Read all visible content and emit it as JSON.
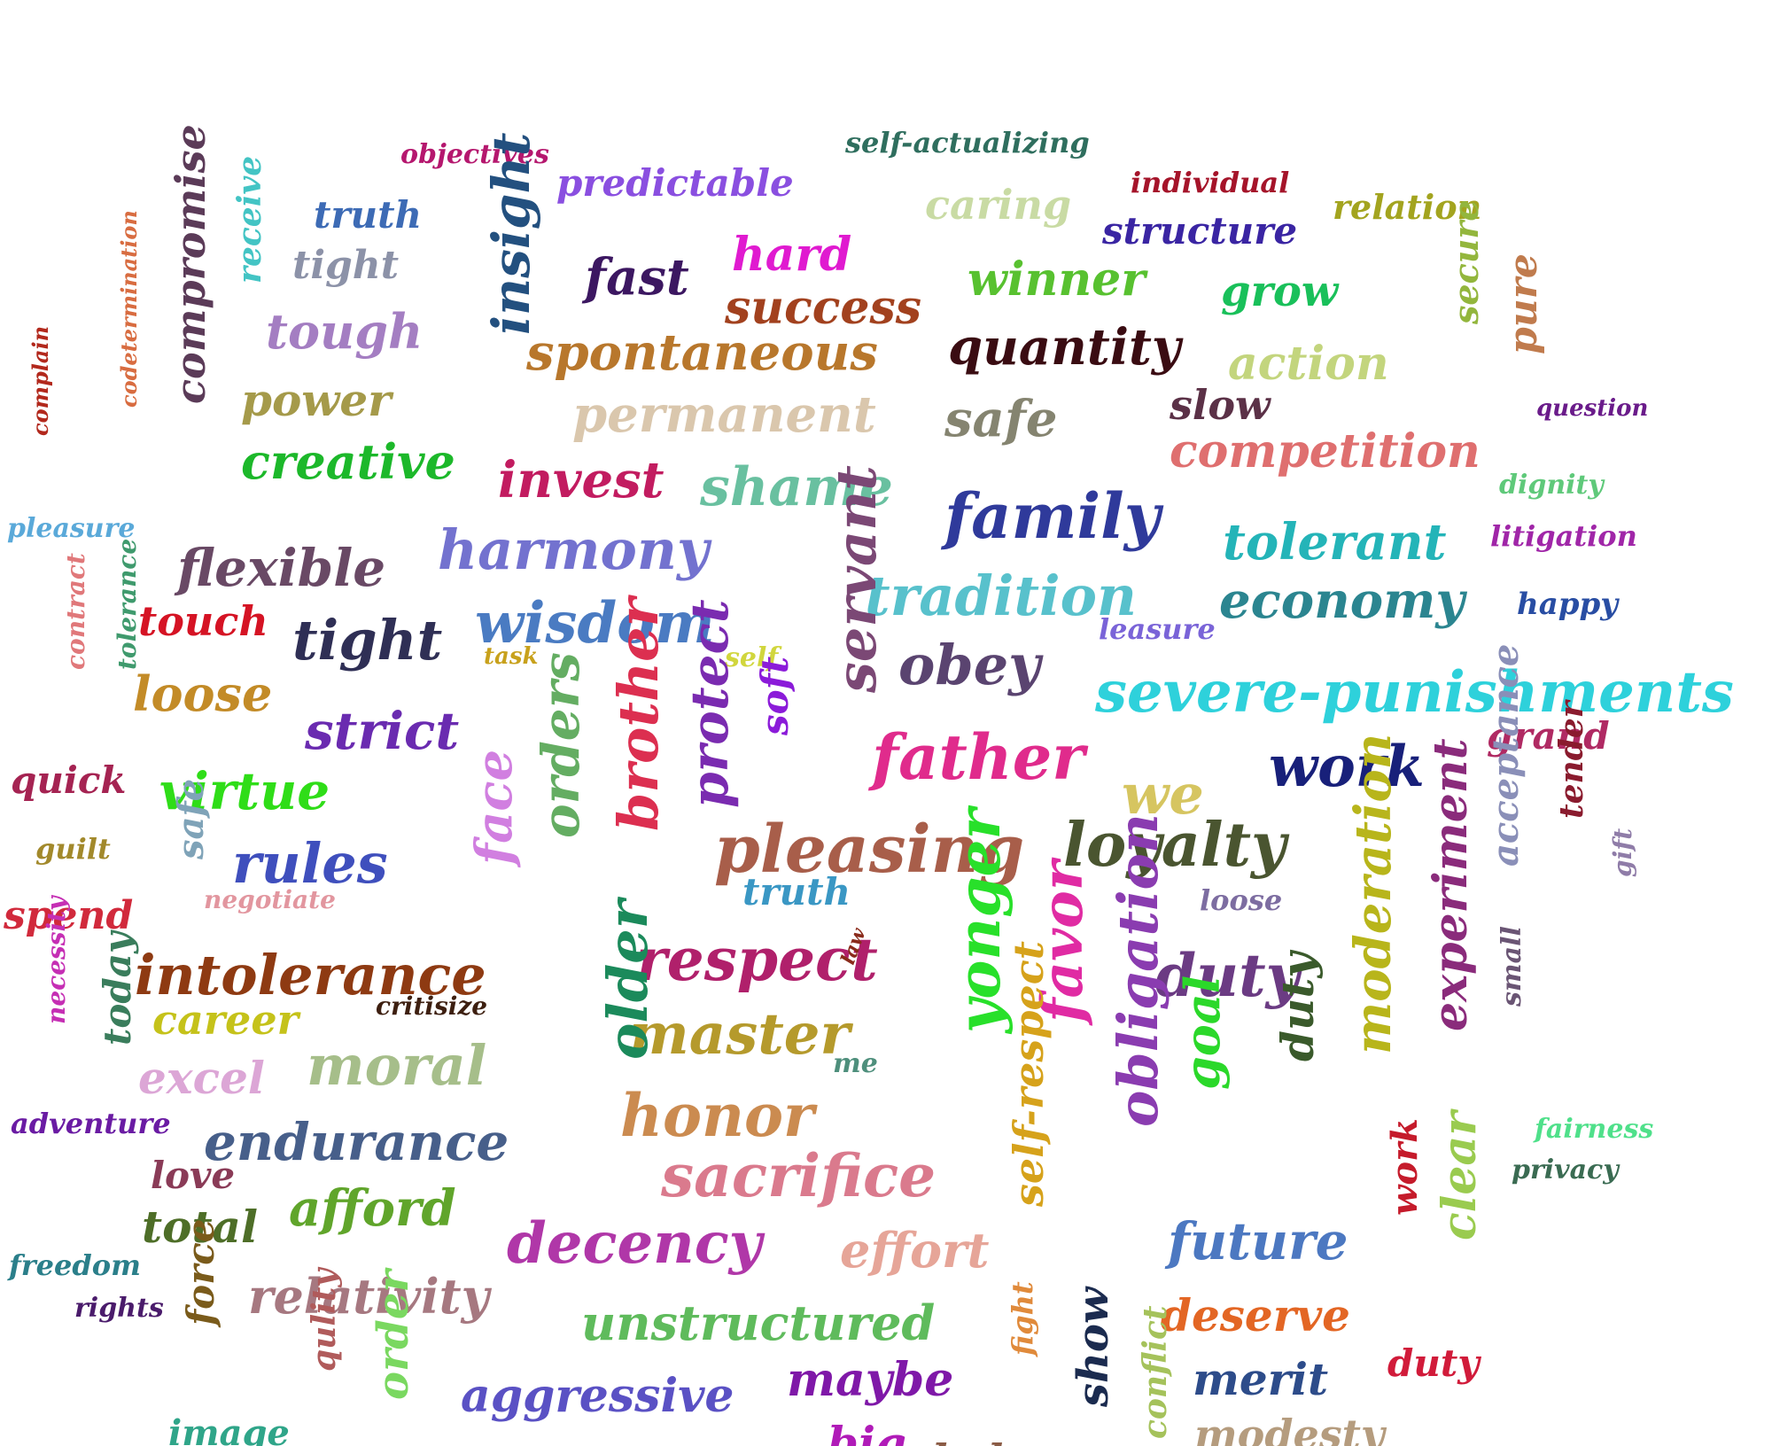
{
  "words": [
    {
      "text": "objectives",
      "color": "#b5176e"
    },
    {
      "text": "self-actualizing",
      "color": "#2f6e5e"
    },
    {
      "text": "predictable",
      "color": "#8a4fe0"
    },
    {
      "text": "caring",
      "color": "#c9dba4"
    },
    {
      "text": "individual",
      "color": "#a5142a"
    },
    {
      "text": "relation",
      "color": "#a3a41f"
    },
    {
      "text": "truth",
      "color": "#3d6bb5"
    },
    {
      "text": "structure",
      "color": "#3a25a3"
    },
    {
      "text": "tight",
      "color": "#8c92a8"
    },
    {
      "text": "hard",
      "color": "#e01ad0"
    },
    {
      "text": "fast",
      "color": "#3c1761"
    },
    {
      "text": "winner",
      "color": "#58c130"
    },
    {
      "text": "grow",
      "color": "#19c05a"
    },
    {
      "text": "success",
      "color": "#a2411e"
    },
    {
      "text": "tough",
      "color": "#a47ec2"
    },
    {
      "text": "spontaneous",
      "color": "#b8772c"
    },
    {
      "text": "quantity",
      "color": "#3a0c12"
    },
    {
      "text": "action",
      "color": "#c3d57d"
    },
    {
      "text": "power",
      "color": "#a59a4a"
    },
    {
      "text": "permanent",
      "color": "#dac7ad"
    },
    {
      "text": "safe",
      "color": "#858470"
    },
    {
      "text": "slow",
      "color": "#5b3147"
    },
    {
      "text": "creative",
      "color": "#1cb82a"
    },
    {
      "text": "competition",
      "color": "#df6f6f"
    },
    {
      "text": "question",
      "color": "#6a1b8a"
    },
    {
      "text": "invest",
      "color": "#c21c60"
    },
    {
      "text": "shame",
      "color": "#69c0a0"
    },
    {
      "text": "family",
      "color": "#2f3a9b"
    },
    {
      "text": "dignity",
      "color": "#5fc97a"
    },
    {
      "text": "pleasure",
      "color": "#5aa9d9"
    },
    {
      "text": "flexible",
      "color": "#694965"
    },
    {
      "text": "harmony",
      "color": "#7372cf"
    },
    {
      "text": "tolerant",
      "color": "#24b4b8"
    },
    {
      "text": "litigation",
      "color": "#a026a8"
    },
    {
      "text": "tradition",
      "color": "#58c1cc"
    },
    {
      "text": "economy",
      "color": "#2b8590"
    },
    {
      "text": "touch",
      "color": "#d51324"
    },
    {
      "text": "tight",
      "color": "#2f2f55"
    },
    {
      "text": "wisdom",
      "color": "#4a7bc2"
    },
    {
      "text": "happy",
      "color": "#284da3"
    },
    {
      "text": "obey",
      "color": "#5a4470"
    },
    {
      "text": "leasure",
      "color": "#7a64d8"
    },
    {
      "text": "task",
      "color": "#c8a11c"
    },
    {
      "text": "self",
      "color": "#d1d63d"
    },
    {
      "text": "loose",
      "color": "#c38b27"
    },
    {
      "text": "severe-punishments",
      "color": "#2ed1db"
    },
    {
      "text": "strict",
      "color": "#6a2bb0"
    },
    {
      "text": "father",
      "color": "#e02b8c"
    },
    {
      "text": "work",
      "color": "#18207a"
    },
    {
      "text": "grand",
      "color": "#b02a63"
    },
    {
      "text": "quick",
      "color": "#a52352"
    },
    {
      "text": "virtue",
      "color": "#2fdd18"
    },
    {
      "text": "we",
      "color": "#d6c560"
    },
    {
      "text": "pleasing",
      "color": "#a85e4a"
    },
    {
      "text": "loyalty",
      "color": "#4a5530"
    },
    {
      "text": "rules",
      "color": "#3f4fbd"
    },
    {
      "text": "guilt",
      "color": "#a2892b"
    },
    {
      "text": "truth",
      "color": "#3a97c4"
    },
    {
      "text": "negotiate",
      "color": "#e2969f"
    },
    {
      "text": "loose",
      "color": "#7d6da1"
    },
    {
      "text": "spend",
      "color": "#d12a3c"
    },
    {
      "text": "respect",
      "color": "#b0206b"
    },
    {
      "text": "intolerance",
      "color": "#8e3a12"
    },
    {
      "text": "duty",
      "color": "#6b3b83"
    },
    {
      "text": "career",
      "color": "#c5c21a"
    },
    {
      "text": "master",
      "color": "#b59a2c"
    },
    {
      "text": "critisize",
      "color": "#3d1f10"
    },
    {
      "text": "moral",
      "color": "#a6be8a"
    },
    {
      "text": "excel",
      "color": "#dca6d6"
    },
    {
      "text": "me",
      "color": "#4e8f7c"
    },
    {
      "text": "honor",
      "color": "#cb8b50"
    },
    {
      "text": "endurance",
      "color": "#475f8a"
    },
    {
      "text": "adventure",
      "color": "#6a1ba3"
    },
    {
      "text": "sacrifice",
      "color": "#da7a8d"
    },
    {
      "text": "fairness",
      "color": "#4fe08a"
    },
    {
      "text": "love",
      "color": "#8a3b57"
    },
    {
      "text": "privacy",
      "color": "#3a6b52"
    },
    {
      "text": "afford",
      "color": "#60a52b"
    },
    {
      "text": "total",
      "color": "#4e6e28"
    },
    {
      "text": "decency",
      "color": "#b037a8"
    },
    {
      "text": "effort",
      "color": "#e6a598"
    },
    {
      "text": "future",
      "color": "#4c78c1"
    },
    {
      "text": "freedom",
      "color": "#2b7f8a"
    },
    {
      "text": "relativity",
      "color": "#a67880"
    },
    {
      "text": "rights",
      "color": "#4a1b6b"
    },
    {
      "text": "unstructured",
      "color": "#5fbb5c"
    },
    {
      "text": "deserve",
      "color": "#e36624"
    },
    {
      "text": "aggressive",
      "color": "#5a51c4"
    },
    {
      "text": "maybe",
      "color": "#7f18a8"
    },
    {
      "text": "merit",
      "color": "#2d4c8a"
    },
    {
      "text": "duty",
      "color": "#d11b3a"
    },
    {
      "text": "image",
      "color": "#2fa589"
    },
    {
      "text": "big",
      "color": "#b01bb8"
    },
    {
      "text": "modesty",
      "color": "#b59c7e"
    },
    {
      "text": "solidarity",
      "color": "#2bb8a5"
    },
    {
      "text": "help",
      "color": "#8a5b45"
    },
    {
      "text": "tradition",
      "color": "#2b8a2b"
    },
    {
      "text": "complain",
      "color": "#b2281c"
    },
    {
      "text": "codetermination",
      "color": "#d86c40"
    },
    {
      "text": "compromise",
      "color": "#5b3b58"
    },
    {
      "text": "receive",
      "color": "#43c4c4"
    },
    {
      "text": "insight",
      "color": "#23507f"
    },
    {
      "text": "secure",
      "color": "#93b63d"
    },
    {
      "text": "pure",
      "color": "#c07b4d"
    },
    {
      "text": "contract",
      "color": "#e0787a"
    },
    {
      "text": "tolerance",
      "color": "#3f9a6d"
    },
    {
      "text": "servant",
      "color": "#7b4875"
    },
    {
      "text": "orders",
      "color": "#64ad62"
    },
    {
      "text": "brother",
      "color": "#dc2f50"
    },
    {
      "text": "protect",
      "color": "#7a2bb0"
    },
    {
      "text": "soft",
      "color": "#8b1bd9"
    },
    {
      "text": "safe",
      "color": "#7fa3b8"
    },
    {
      "text": "face",
      "color": "#d17fe0"
    },
    {
      "text": "necessity",
      "color": "#c52fb4"
    },
    {
      "text": "today",
      "color": "#3a7d5c"
    },
    {
      "text": "older",
      "color": "#1b8a5b"
    },
    {
      "text": "yonger",
      "color": "#28e02a"
    },
    {
      "text": "favor",
      "color": "#e02ba3"
    },
    {
      "text": "obligation",
      "color": "#8a3cb0"
    },
    {
      "text": "goal",
      "color": "#2bd82a"
    },
    {
      "text": "duty",
      "color": "#3a5a2b"
    },
    {
      "text": "moderation",
      "color": "#b8b51b"
    },
    {
      "text": "experiment",
      "color": "#8a2b7b"
    },
    {
      "text": "small",
      "color": "#6a5574"
    },
    {
      "text": "acceptance",
      "color": "#8a8fb8"
    },
    {
      "text": "tender",
      "color": "#8a1b2e"
    },
    {
      "text": "gift",
      "color": "#8f7ca8"
    },
    {
      "text": "self-respect",
      "color": "#d6a21b"
    },
    {
      "text": "work",
      "color": "#c51b2b"
    },
    {
      "text": "clear",
      "color": "#9acb4f"
    },
    {
      "text": "force",
      "color": "#7a5b1b"
    },
    {
      "text": "qulity",
      "color": "#b05b5b"
    },
    {
      "text": "order",
      "color": "#7ad860"
    },
    {
      "text": "fight",
      "color": "#e08a3b"
    },
    {
      "text": "show",
      "color": "#1b2b4f"
    },
    {
      "text": "conflict",
      "color": "#a5c25b"
    },
    {
      "text": "law",
      "color": "#8a2b1b"
    },
    {
      "text": "1",
      "color": "#5b8a6b"
    }
  ]
}
